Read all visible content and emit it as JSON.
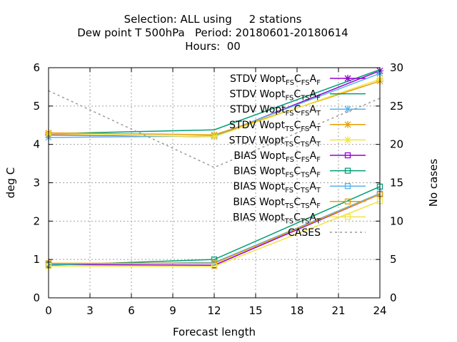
{
  "chart_data": {
    "type": "line",
    "title_lines": [
      "Selection: ALL using     2 stations",
      "Dew point T 500hPa   Period: 20180601-20180614",
      "Hours:  00"
    ],
    "xlabel": "Forecast length",
    "ylabel": "deg C",
    "y2label": "No cases",
    "x": [
      0,
      12,
      24
    ],
    "xlim": [
      0,
      24
    ],
    "ylim": [
      0,
      6
    ],
    "y2lim": [
      0,
      30
    ],
    "x_ticks": [
      "0",
      "3",
      "6",
      "9",
      "12",
      "15",
      "18",
      "21",
      "24"
    ],
    "y_ticks": [
      "0",
      "1",
      "2",
      "3",
      "4",
      "5",
      "6"
    ],
    "y2_ticks": [
      "0",
      "5",
      "10",
      "15",
      "20",
      "25",
      "30"
    ],
    "grid": true,
    "legend_position": "top-right",
    "series": [
      {
        "name": "STDV Wopt_FS C_FS A_F",
        "label": [
          [
            "STDV Wopt",
            ""
          ],
          [
            "FS",
            "sub"
          ],
          [
            "C",
            ""
          ],
          [
            "FS",
            "sub"
          ],
          [
            "A",
            ""
          ],
          [
            "F",
            "sub"
          ]
        ],
        "color": "#9400d3",
        "marker": "x-star",
        "values": [
          4.25,
          4.2,
          5.92
        ]
      },
      {
        "name": "STDV Wopt_FS C_TS A_F",
        "label": [
          [
            "STDV Wopt",
            ""
          ],
          [
            "FS",
            "sub"
          ],
          [
            "C",
            ""
          ],
          [
            "TS",
            "sub"
          ],
          [
            "A",
            ""
          ],
          [
            "F",
            "sub"
          ]
        ],
        "color": "#009e73",
        "marker": "none",
        "values": [
          4.28,
          4.38,
          5.95
        ]
      },
      {
        "name": "STDV Wopt_FS C_FS A_T",
        "label": [
          [
            "STDV Wopt",
            ""
          ],
          [
            "FS",
            "sub"
          ],
          [
            "C",
            ""
          ],
          [
            "FS",
            "sub"
          ],
          [
            "A",
            ""
          ],
          [
            "T",
            "sub"
          ]
        ],
        "color": "#56b4e9",
        "marker": "x-star",
        "values": [
          4.18,
          4.22,
          5.85
        ]
      },
      {
        "name": "STDV Wopt_TS C_FS A_T",
        "label": [
          [
            "STDV Wopt",
            ""
          ],
          [
            "TS",
            "sub"
          ],
          [
            "C",
            ""
          ],
          [
            "FS",
            "sub"
          ],
          [
            "A",
            ""
          ],
          [
            "T",
            "sub"
          ]
        ],
        "color": "#e69f00",
        "marker": "x-star",
        "values": [
          4.3,
          4.25,
          5.65
        ]
      },
      {
        "name": "STDV Wopt_TS C_TS A_T",
        "label": [
          [
            "STDV Wopt",
            ""
          ],
          [
            "TS",
            "sub"
          ],
          [
            "C",
            ""
          ],
          [
            "TS",
            "sub"
          ],
          [
            "A",
            ""
          ],
          [
            "T",
            "sub"
          ]
        ],
        "color": "#f0e442",
        "marker": "x-star",
        "values": [
          4.27,
          4.2,
          5.7
        ]
      },
      {
        "name": "BIAS Wopt_FS C_FS A_F",
        "label": [
          [
            "BIAS Wopt",
            ""
          ],
          [
            "FS",
            "sub"
          ],
          [
            "C",
            ""
          ],
          [
            "FS",
            "sub"
          ],
          [
            "A",
            ""
          ],
          [
            "F",
            "sub"
          ]
        ],
        "color": "#9400d3",
        "marker": "square",
        "values": [
          0.87,
          0.85,
          2.7
        ]
      },
      {
        "name": "BIAS Wopt_FS C_TS A_F",
        "label": [
          [
            "BIAS Wopt",
            ""
          ],
          [
            "FS",
            "sub"
          ],
          [
            "C",
            ""
          ],
          [
            "TS",
            "sub"
          ],
          [
            "A",
            ""
          ],
          [
            "F",
            "sub"
          ]
        ],
        "color": "#009e73",
        "marker": "square",
        "values": [
          0.85,
          1.0,
          2.9
        ]
      },
      {
        "name": "BIAS Wopt_FS C_TS A_T",
        "label": [
          [
            "BIAS Wopt",
            ""
          ],
          [
            "FS",
            "sub"
          ],
          [
            "C",
            ""
          ],
          [
            "TS",
            "sub"
          ],
          [
            "A",
            ""
          ],
          [
            "T",
            "sub"
          ]
        ],
        "color": "#56b4e9",
        "marker": "square",
        "values": [
          0.88,
          0.92,
          2.72
        ]
      },
      {
        "name": "BIAS Wopt_TS C_TS A_F",
        "label": [
          [
            "BIAS Wopt",
            ""
          ],
          [
            "TS",
            "sub"
          ],
          [
            "C",
            ""
          ],
          [
            "TS",
            "sub"
          ],
          [
            "A",
            ""
          ],
          [
            "F",
            "sub"
          ]
        ],
        "color": "#e69f00",
        "marker": "square",
        "values": [
          0.9,
          0.9,
          2.7
        ]
      },
      {
        "name": "BIAS Wopt_TS C_TS A_T",
        "label": [
          [
            "BIAS Wopt",
            ""
          ],
          [
            "TS",
            "sub"
          ],
          [
            "C",
            ""
          ],
          [
            "TS",
            "sub"
          ],
          [
            "A",
            ""
          ],
          [
            "T",
            "sub"
          ]
        ],
        "color": "#f0e442",
        "marker": "square",
        "values": [
          0.83,
          0.82,
          2.52
        ]
      },
      {
        "name": "CASES",
        "label": [
          [
            "CASES",
            ""
          ]
        ],
        "color": "#999999",
        "marker": "none",
        "dashed": true,
        "axis": "y2",
        "values": [
          27,
          17,
          26
        ]
      }
    ]
  }
}
